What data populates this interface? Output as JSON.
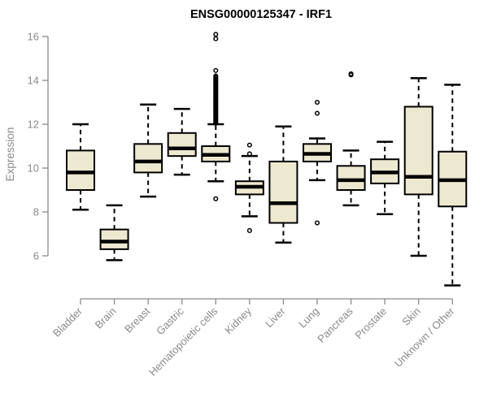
{
  "chart_data": {
    "type": "boxplot",
    "title": "ENSG00000125347 - IRF1",
    "ylabel": "Expression",
    "xlabel": "",
    "y_ticks": [
      6,
      8,
      10,
      12,
      14,
      16
    ],
    "ylim": [
      4.3,
      16.3
    ],
    "grid": false,
    "legend": false,
    "categories": [
      "Bladder",
      "Brain",
      "Breast",
      "Gastric",
      "Hematopoietic cells",
      "Kidney",
      "Liver",
      "Lung",
      "Pancreas",
      "Prostate",
      "Skin",
      "Unknown / Other"
    ],
    "boxes": [
      {
        "category": "Bladder",
        "whisker_low": 8.1,
        "q1": 9.0,
        "median": 9.8,
        "q3": 10.8,
        "whisker_high": 12.0,
        "outliers": []
      },
      {
        "category": "Brain",
        "whisker_low": 5.8,
        "q1": 6.3,
        "median": 6.65,
        "q3": 7.2,
        "whisker_high": 8.3,
        "outliers": []
      },
      {
        "category": "Breast",
        "whisker_low": 8.7,
        "q1": 9.8,
        "median": 10.3,
        "q3": 11.1,
        "whisker_high": 12.9,
        "outliers": []
      },
      {
        "category": "Gastric",
        "whisker_low": 9.7,
        "q1": 10.55,
        "median": 10.9,
        "q3": 11.6,
        "whisker_high": 12.7,
        "outliers": []
      },
      {
        "category": "Hematopoietic cells",
        "whisker_low": 9.4,
        "q1": 10.3,
        "median": 10.6,
        "q3": 11.0,
        "whisker_high": 12.0,
        "outliers": [
          8.6,
          12.05,
          12.1,
          12.15,
          12.2,
          12.25,
          12.3,
          12.35,
          12.4,
          12.45,
          12.5,
          12.55,
          12.6,
          12.65,
          12.7,
          12.75,
          12.8,
          12.85,
          12.9,
          12.95,
          13.0,
          13.05,
          13.1,
          13.15,
          13.2,
          13.25,
          13.3,
          13.35,
          13.4,
          13.45,
          13.5,
          13.55,
          13.6,
          13.65,
          13.7,
          13.75,
          13.8,
          13.85,
          13.9,
          13.95,
          14.0,
          14.05,
          14.1,
          14.15,
          14.2,
          14.45,
          15.9,
          16.1
        ]
      },
      {
        "category": "Kidney",
        "whisker_low": 7.8,
        "q1": 8.8,
        "median": 9.15,
        "q3": 9.4,
        "whisker_high": 10.55,
        "outliers": [
          7.15,
          10.65,
          11.05
        ]
      },
      {
        "category": "Liver",
        "whisker_low": 6.6,
        "q1": 7.5,
        "median": 8.4,
        "q3": 10.3,
        "whisker_high": 11.9,
        "outliers": []
      },
      {
        "category": "Lung",
        "whisker_low": 9.45,
        "q1": 10.3,
        "median": 10.65,
        "q3": 11.1,
        "whisker_high": 11.35,
        "outliers": [
          7.5,
          12.5,
          13.0
        ]
      },
      {
        "category": "Pancreas",
        "whisker_low": 8.3,
        "q1": 9.0,
        "median": 9.45,
        "q3": 10.1,
        "whisker_high": 10.8,
        "outliers": [
          14.25,
          14.3
        ]
      },
      {
        "category": "Prostate",
        "whisker_low": 7.9,
        "q1": 9.3,
        "median": 9.8,
        "q3": 10.4,
        "whisker_high": 11.2,
        "outliers": []
      },
      {
        "category": "Skin",
        "whisker_low": 6.0,
        "q1": 8.8,
        "median": 9.6,
        "q3": 12.8,
        "whisker_high": 14.1,
        "outliers": []
      },
      {
        "category": "Unknown / Other",
        "whisker_low": 4.65,
        "q1": 8.25,
        "median": 9.45,
        "q3": 10.75,
        "whisker_high": 13.8,
        "outliers": []
      }
    ],
    "style": {
      "box_fill": "#ede8d0",
      "box_stroke": "#000000",
      "median_color": "#000000",
      "whisker_color": "#000000",
      "outlier_color": "#000000",
      "axis_color": "#8a8a8a",
      "tick_label_color": "#8a8a8a",
      "title_color": "#000000",
      "background": "#ffffff"
    }
  }
}
